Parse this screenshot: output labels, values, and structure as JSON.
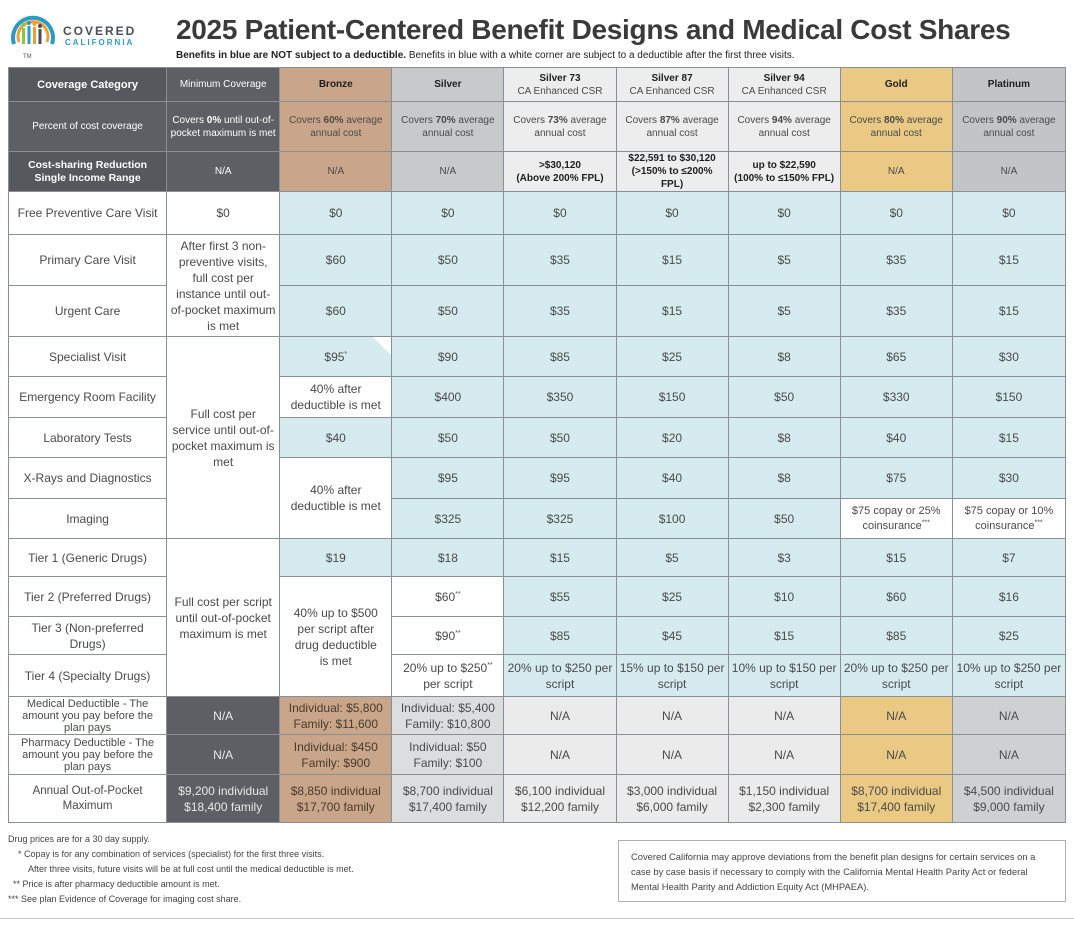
{
  "brand": {
    "word1": "COVERED",
    "word2": "CALIFORNIA",
    "tm": "TM",
    "colors": {
      "blue": "#2a9bc9",
      "orange": "#f0a030",
      "green": "#8cc63f",
      "gray": "#4a4f56"
    }
  },
  "header": {
    "title": "2025 Patient-Centered Benefit Designs and Medical Cost Shares",
    "subtitle_bold": "Benefits in blue are NOT subject to a deductible.",
    "subtitle_rest": " Benefits in blue with a white corner are subject to a deductible after the first three visits."
  },
  "columns": {
    "category": "Coverage Category",
    "min": "Minimum Coverage",
    "bronze": "Bronze",
    "silver": "Silver",
    "s73_a": "Silver 73",
    "s73_b": "CA Enhanced CSR",
    "s87_a": "Silver 87",
    "s87_b": "CA Enhanced CSR",
    "s94_a": "Silver 94",
    "s94_b": "CA Enhanced CSR",
    "gold": "Gold",
    "platinum": "Platinum"
  },
  "percent_row": {
    "label": "Percent of cost coverage",
    "min": {
      "pre": "Covers ",
      "bold": "0%",
      "post": " until out-of-pocket maximum is met"
    },
    "bronze": {
      "pre": "Covers ",
      "bold": "60%",
      "post": " average annual cost"
    },
    "silver": {
      "pre": "Covers ",
      "bold": "70%",
      "post": " average annual cost"
    },
    "s73": {
      "pre": "Covers ",
      "bold": "73%",
      "post": " average annual cost"
    },
    "s87": {
      "pre": "Covers ",
      "bold": "87%",
      "post": " average annual cost"
    },
    "s94": {
      "pre": "Covers ",
      "bold": "94%",
      "post": " average annual cost"
    },
    "gold": {
      "pre": "Covers ",
      "bold": "80%",
      "post": " average annual cost"
    },
    "platinum": {
      "pre": "Covers ",
      "bold": "90%",
      "post": " average annual cost"
    }
  },
  "csr_row": {
    "label_a": "Cost-sharing Reduction",
    "label_b": "Single Income Range",
    "min": "N/A",
    "bronze": "N/A",
    "silver": "N/A",
    "s73_a": ">$30,120",
    "s73_b": "(Above 200% FPL)",
    "s87_a": "$22,591 to $30,120",
    "s87_b": "(>150% to ≤200% FPL)",
    "s94_a": "up to $22,590",
    "s94_b": "(100% to ≤150% FPL)",
    "gold": "N/A",
    "platinum": "N/A"
  },
  "preventive": {
    "label": "Free Preventive Care Visit",
    "min": "$0",
    "bronze": "$0",
    "silver": "$0",
    "s73": "$0",
    "s87": "$0",
    "s94": "$0",
    "gold": "$0",
    "platinum": "$0"
  },
  "min_group1": "After first 3 non-preventive visits, full cost per instance until out-of-pocket maximum is met",
  "primary": {
    "label": "Primary Care Visit",
    "bronze": "$60",
    "silver": "$50",
    "s73": "$35",
    "s87": "$15",
    "s94": "$5",
    "gold": "$35",
    "platinum": "$15"
  },
  "urgent": {
    "label": "Urgent Care",
    "bronze": "$60",
    "silver": "$50",
    "s73": "$35",
    "s87": "$15",
    "s94": "$5",
    "gold": "$35",
    "platinum": "$15"
  },
  "min_group2": "Full cost per service until out-of-pocket maximum is met",
  "specialist": {
    "label": "Specialist Visit",
    "bronze": "$95",
    "bronze_mark": "*",
    "silver": "$90",
    "s73": "$85",
    "s87": "$25",
    "s94": "$8",
    "gold": "$65",
    "platinum": "$30"
  },
  "er": {
    "label": "Emergency Room Facility",
    "bronze": "40% after deductible is met",
    "silver": "$400",
    "s73": "$350",
    "s87": "$150",
    "s94": "$50",
    "gold": "$330",
    "platinum": "$150"
  },
  "lab": {
    "label": "Laboratory Tests",
    "bronze": "$40",
    "silver": "$50",
    "s73": "$50",
    "s87": "$20",
    "s94": "$8",
    "gold": "$40",
    "platinum": "$15"
  },
  "xray": {
    "label": "X-Rays and Diagnostics",
    "bronze_group": "40% after deductible is met",
    "silver": "$95",
    "s73": "$95",
    "s87": "$40",
    "s94": "$8",
    "gold": "$75",
    "platinum": "$30"
  },
  "imaging": {
    "label": "Imaging",
    "silver": "$325",
    "s73": "$325",
    "s87": "$100",
    "s94": "$50",
    "gold": "$75 copay or 25% coinsurance",
    "gold_mark": "***",
    "platinum": "$75 copay or 10% coinsurance",
    "platinum_mark": "***"
  },
  "min_group3": "Full cost per script until out-of-pocket maximum is met",
  "tier1": {
    "label": "Tier 1 (Generic Drugs)",
    "bronze": "$19",
    "silver": "$18",
    "s73": "$15",
    "s87": "$5",
    "s94": "$3",
    "gold": "$15",
    "platinum": "$7"
  },
  "tier2": {
    "label": "Tier 2 (Preferred Drugs)",
    "bronze_group": "40% up to $500 per script after drug deductible is met",
    "silver": "$60",
    "silver_mark": "**",
    "s73": "$55",
    "s87": "$25",
    "s94": "$10",
    "gold": "$60",
    "platinum": "$16"
  },
  "tier3": {
    "label": "Tier 3 (Non-preferred Drugs)",
    "silver": "$90",
    "silver_mark": "**",
    "s73": "$85",
    "s87": "$45",
    "s94": "$15",
    "gold": "$85",
    "platinum": "$25"
  },
  "tier4": {
    "label": "Tier 4 (Specialty Drugs)",
    "silver": "20% up to $250",
    "silver_mark": "**",
    "silver_b": "per script",
    "s73": "20% up to $250 per script",
    "s87": "15% up to $150 per script",
    "s94": "10% up to $150 per script",
    "gold": "20% up to $250 per script",
    "platinum": "10% up to $250 per script"
  },
  "med_ded": {
    "label": "Medical Deductible - The amount you pay before the plan pays",
    "min": "N/A",
    "bronze": "Individual: $5,800 Family: $11,600",
    "silver": "Individual: $5,400 Family: $10,800",
    "s73": "N/A",
    "s87": "N/A",
    "s94": "N/A",
    "gold": "N/A",
    "platinum": "N/A"
  },
  "pharm_ded": {
    "label": "Pharmacy Deductible - The amount you pay before the plan pays",
    "min": "N/A",
    "bronze": "Individual: $450 Family: $900",
    "silver": "Individual: $50 Family: $100",
    "s73": "N/A",
    "s87": "N/A",
    "s94": "N/A",
    "gold": "N/A",
    "platinum": "N/A"
  },
  "oop": {
    "label": "Annual Out-of-Pocket Maximum",
    "min": "$9,200 individual $18,400 family",
    "bronze": "$8,850 individual $17,700 family",
    "silver": "$8,700 individual $17,400 family",
    "s73": "$6,100 individual $12,200 family",
    "s87": "$3,000 individual $6,000 family",
    "s94": "$1,150 individual $2,300 family",
    "gold": "$8,700 individual $17,400 family",
    "platinum": "$4,500 individual $9,000 family"
  },
  "footnotes": {
    "l1": "Drug prices are for a 30 day supply.",
    "l2": "* Copay is for any combination of services (specialist) for the first three visits.",
    "l3": "After three visits, future visits will be at full cost until the medical deductible is met.",
    "l4": "** Price is after pharmacy deductible amount is met.",
    "l5": "*** See plan Evidence of Coverage for imaging cost share."
  },
  "disclaimer": "Covered California may approve deviations from the benefit plan designs for certain services on a case by case basis if necessary to comply with the California Mental Health Parity Act or federal Mental Health Parity and Addiction Equity Act (MHPAEA)."
}
